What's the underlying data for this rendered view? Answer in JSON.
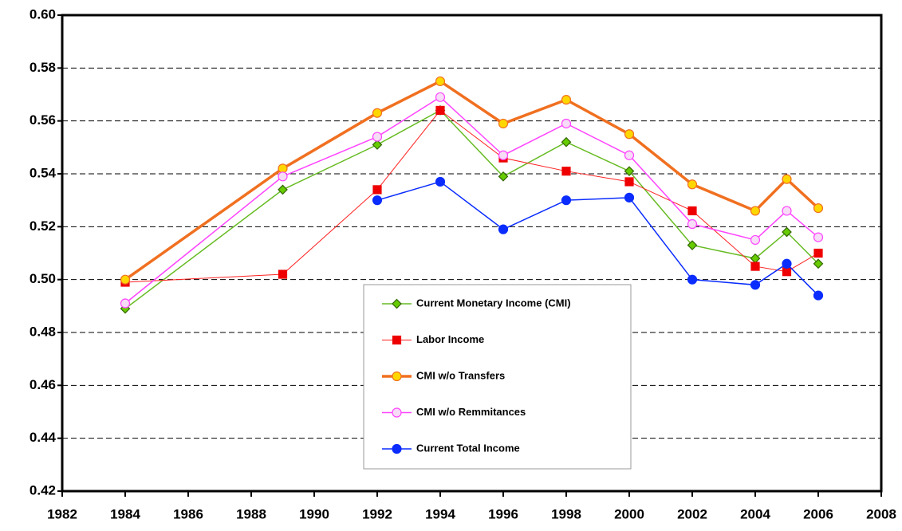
{
  "chart_data": {
    "type": "line",
    "x": [
      1984,
      1989,
      1992,
      1994,
      1996,
      1998,
      2000,
      2002,
      2004,
      2005,
      2006
    ],
    "series": [
      {
        "name": "Current Monetary Income (CMI)",
        "color": "#66bb22",
        "marker": "diamond",
        "marker_fill": "#66cc00",
        "line_width": 1.5,
        "values": [
          0.489,
          0.534,
          0.551,
          0.564,
          0.539,
          0.552,
          0.541,
          0.513,
          0.508,
          0.518,
          0.506
        ]
      },
      {
        "name": "Labor Income",
        "color": "#ff2020",
        "marker": "square",
        "marker_fill": "#ee0000",
        "line_width": 1,
        "values": [
          0.499,
          0.502,
          0.534,
          0.564,
          0.546,
          0.541,
          0.537,
          0.526,
          0.505,
          0.503,
          0.51
        ]
      },
      {
        "name": "CMI w/o Transfers",
        "color": "#f07020",
        "marker": "circle",
        "marker_fill": "#ffd700",
        "line_width": 3.5,
        "values": [
          0.5,
          0.542,
          0.563,
          0.575,
          0.559,
          0.568,
          0.555,
          0.536,
          0.526,
          0.538,
          0.527
        ]
      },
      {
        "name": "CMI w/o Remmitances",
        "color": "#ff44ff",
        "marker": "circle",
        "marker_fill": "#f6dcf6",
        "line_width": 1.5,
        "values": [
          0.491,
          0.539,
          0.554,
          0.569,
          0.547,
          0.559,
          0.547,
          0.521,
          0.515,
          0.526,
          0.516
        ]
      },
      {
        "name": "Current Total Income",
        "color": "#0a2cff",
        "marker": "circle",
        "marker_fill": "#0a2cff",
        "line_width": 1.5,
        "values": [
          null,
          null,
          0.53,
          0.537,
          0.519,
          0.53,
          0.531,
          0.5,
          0.498,
          0.506,
          0.494
        ]
      }
    ],
    "xlim": [
      1982,
      2008
    ],
    "xticks": [
      1982,
      1984,
      1986,
      1988,
      1990,
      1992,
      1994,
      1996,
      1998,
      2000,
      2002,
      2004,
      2006,
      2008
    ],
    "ylim": [
      0.42,
      0.6
    ],
    "yticks": [
      0.42,
      0.44,
      0.46,
      0.48,
      {
        "value": 0.5,
        "label": "0.50"
      },
      0.52,
      0.54,
      0.56,
      0.58,
      {
        "value": 0.6,
        "label": "0.60"
      }
    ],
    "grid": true,
    "legend": "center"
  }
}
